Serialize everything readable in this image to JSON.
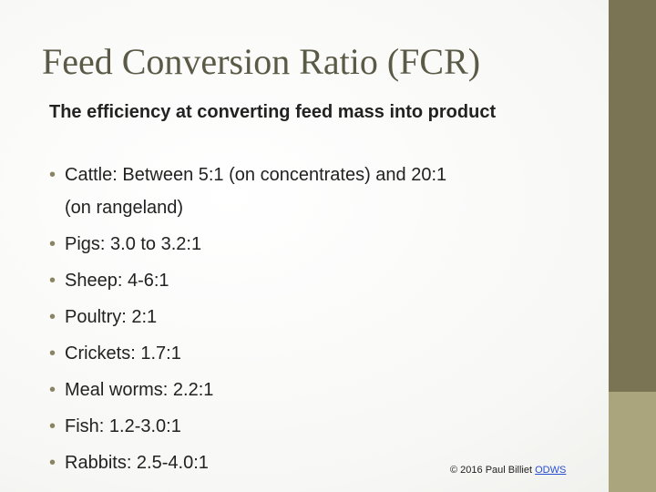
{
  "title": "Feed Conversion Ratio (FCR)",
  "intro": "The efficiency at converting feed mass into product",
  "bullets": [
    "Cattle: Between 5:1 (on concentrates) and 20:1 (on rangeland)",
    "Pigs: 3.0 to 3.2:1",
    "Sheep: 4-6:1",
    "Poultry: 2:1",
    "Crickets: 1.7:1",
    "Meal worms: 2.2:1",
    "Fish: 1.2-3.0:1",
    "Rabbits: 2.5-4.0:1"
  ],
  "footer": {
    "credit": "© 2016 Paul Billiet",
    "link": "ODWS"
  }
}
